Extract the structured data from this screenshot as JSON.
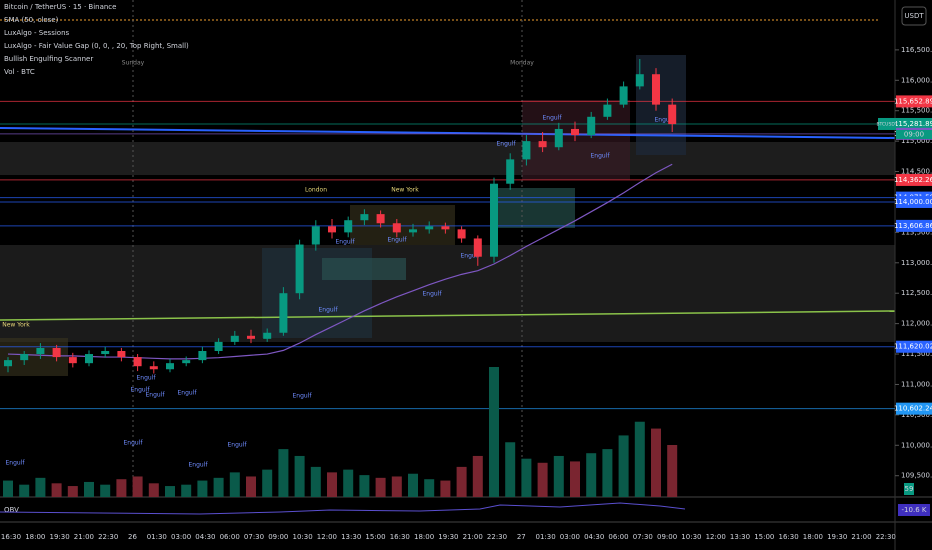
{
  "chart_data": {
    "type": "candlestick",
    "title": "Bitcoin / TetherUS · 15 · Binance",
    "indicators": [
      "SMA (50, close)",
      "LuxAlgo - Sessions",
      "LuxAlgo - Fair Value Gap (0, 0, , 20, Top Right, Small)",
      "Bullish Engulfing Scanner",
      "Vol · BTC"
    ],
    "currency": "USDT",
    "open": [
      111300,
      111400,
      111500,
      111600,
      111450,
      111350,
      111500,
      111550,
      111450,
      111300,
      111250,
      111350,
      111400,
      111550,
      111700,
      111800,
      111750,
      111850,
      112500,
      113300,
      113600,
      113500,
      113700,
      113800,
      113650,
      113500,
      113550,
      113600,
      113550,
      113400,
      113100,
      114300,
      114700,
      115000,
      114900,
      115200,
      115100,
      115400,
      115600,
      115900,
      116100,
      115600
    ],
    "high": [
      111450,
      111550,
      111680,
      111650,
      111520,
      111560,
      111620,
      111600,
      111500,
      111380,
      111420,
      111460,
      111620,
      111760,
      111880,
      111900,
      111920,
      112600,
      113380,
      113700,
      113720,
      113760,
      113880,
      113860,
      113720,
      113640,
      113680,
      113660,
      113600,
      113450,
      114400,
      114800,
      115100,
      115150,
      115300,
      115320,
      115480,
      115700,
      115980,
      116350,
      116200,
      115700
    ],
    "low": [
      111200,
      111320,
      111420,
      111380,
      111280,
      111300,
      111440,
      111380,
      111220,
      111180,
      111200,
      111300,
      111350,
      111500,
      111650,
      111680,
      111700,
      111800,
      112400,
      113200,
      113400,
      113420,
      113620,
      113580,
      113420,
      113430,
      113480,
      113480,
      113330,
      112950,
      113000,
      114200,
      114600,
      114820,
      114850,
      115000,
      115050,
      115350,
      115550,
      115850,
      115500,
      115150
    ],
    "close": [
      111400,
      111500,
      111600,
      111450,
      111350,
      111500,
      111550,
      111450,
      111300,
      111250,
      111350,
      111400,
      111550,
      111700,
      111800,
      111750,
      111850,
      112500,
      113300,
      113600,
      113500,
      113700,
      113800,
      113650,
      113500,
      113550,
      113600,
      113550,
      113400,
      113100,
      114300,
      114700,
      115000,
      114900,
      115200,
      115100,
      115400,
      115600,
      115900,
      116100,
      115600,
      115280
    ],
    "volume": [
      12,
      9,
      14,
      10,
      8,
      11,
      9,
      13,
      15,
      10,
      8,
      9,
      12,
      14,
      18,
      15,
      20,
      35,
      30,
      22,
      18,
      20,
      16,
      14,
      15,
      17,
      13,
      12,
      22,
      30,
      95,
      40,
      28,
      25,
      30,
      26,
      32,
      35,
      45,
      55,
      50,
      38
    ],
    "sma": [
      111500,
      111490,
      111480,
      111470,
      111470,
      111460,
      111450,
      111450,
      111440,
      111430,
      111420,
      111420,
      111430,
      111440,
      111460,
      111480,
      111500,
      111560,
      111680,
      111820,
      111950,
      112080,
      112210,
      112330,
      112440,
      112540,
      112640,
      112730,
      112810,
      112870,
      112980,
      113120,
      113270,
      113410,
      113550,
      113690,
      113840,
      113990,
      114150,
      114320,
      114480,
      114620
    ],
    "ylim": [
      109150,
      117320
    ],
    "yticks": [
      {
        "value": 116500,
        "label": "116,500.00"
      },
      {
        "value": 116000,
        "label": "116,000.00"
      },
      {
        "value": 115500,
        "label": "115,500.00"
      },
      {
        "value": 115000,
        "label": "115,000.00"
      },
      {
        "value": 114500,
        "label": "114,500.00"
      },
      {
        "value": 114000,
        "label": "114,000.00"
      },
      {
        "value": 113500,
        "label": "113,500.00"
      },
      {
        "value": 113000,
        "label": "113,000.00"
      },
      {
        "value": 112500,
        "label": "112,500.00"
      },
      {
        "value": 112000,
        "label": "112,000.00"
      },
      {
        "value": 111500,
        "label": "111,500.00"
      },
      {
        "value": 111000,
        "label": "111,000.00"
      },
      {
        "value": 110500,
        "label": "110,500.00"
      },
      {
        "value": 110000,
        "label": "110,000.00"
      },
      {
        "value": 109500,
        "label": "109,500.00"
      }
    ],
    "price_labels": [
      {
        "value": 115652.89,
        "label": "115,652.89",
        "color": "#f23645"
      },
      {
        "value": 115281.89,
        "label": "115,281.89",
        "color": "#089981"
      },
      {
        "value": 115119.62,
        "label": "115,119.62",
        "color": "#7e57c2"
      },
      {
        "value": 114362.26,
        "label": "114,362.26",
        "color": "#f23645"
      },
      {
        "value": 114071.5,
        "label": "114,071.50",
        "color": "#2962ff"
      },
      {
        "value": 114000,
        "label": "114,000.00",
        "color": "#2962ff"
      },
      {
        "value": 113606.86,
        "label": "113,606.86",
        "color": "#2962ff"
      },
      {
        "value": 111620.02,
        "label": "111,620.02",
        "color": "#2962ff"
      },
      {
        "value": 110602.24,
        "label": "110,602.24",
        "color": "#2196f3"
      }
    ],
    "ticker": "BTCUSDT",
    "countdown": "09:00",
    "volume_label": "59",
    "obv_title": "OBV",
    "obv_label": "-10.6 K",
    "xticks": [
      "16:30",
      "18:00",
      "19:30",
      "21:00",
      "22:30",
      "26",
      "01:30",
      "03:00",
      "04:30",
      "06:00",
      "07:30",
      "09:00",
      "10:30",
      "12:00",
      "13:30",
      "15:00",
      "16:30",
      "18:00",
      "19:30",
      "21:00",
      "22:30",
      "27",
      "01:30",
      "03:00",
      "04:30",
      "06:00",
      "07:30",
      "09:00",
      "10:30",
      "12:00",
      "13:30",
      "15:00",
      "16:30",
      "18:00",
      "19:30",
      "21:00",
      "22:30"
    ],
    "annotations": [
      "Sunday",
      "Monday",
      "New York",
      "London",
      "New York",
      "Engulf",
      "Engulf",
      "Engulf",
      "Engulf",
      "Engulf",
      "Engulf",
      "Engulf",
      "Engulf",
      "Engulf",
      "Engulf",
      "Engulf",
      "Engulf",
      "Engulf",
      "Engulf",
      "Engulf",
      "Engulf",
      "Engulf",
      "Engulf"
    ]
  }
}
